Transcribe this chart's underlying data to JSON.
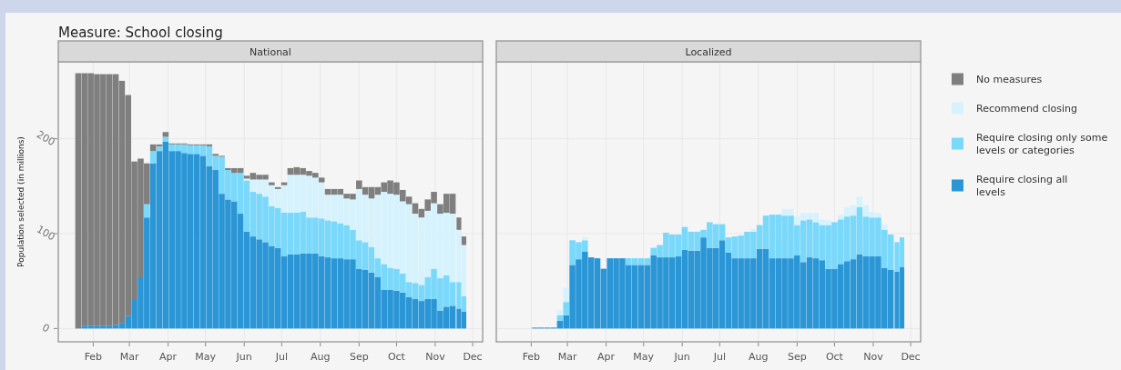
{
  "chart_data": [
    {
      "type": "bar",
      "title": "Measure: School closing",
      "subtitle": "National",
      "ylabel": "Population selected (in millions)",
      "stacked": true,
      "grid": true,
      "legend": "right",
      "tick_labels": "xy",
      "xlim": [
        "--01-04",
        "--12-09"
      ],
      "ylim": [
        -14,
        281
      ],
      "yticks": [
        0,
        100,
        200
      ],
      "xticks": [
        {
          "value": "--02-01",
          "label": "Feb"
        },
        {
          "value": "--03-01",
          "label": "Mar"
        },
        {
          "value": "--04-01",
          "label": "Apr"
        },
        {
          "value": "--05-01",
          "label": "May"
        },
        {
          "value": "--06-01",
          "label": "Jun"
        },
        {
          "value": "--07-01",
          "label": "Jul"
        },
        {
          "value": "--08-01",
          "label": "Aug"
        },
        {
          "value": "--09-01",
          "label": "Sep"
        },
        {
          "value": "--10-01",
          "label": "Oct"
        },
        {
          "value": "--11-01",
          "label": "Nov"
        },
        {
          "value": "--12-01",
          "label": "Dec"
        }
      ],
      "x": [
        "--01-20",
        "--01-25",
        "--01-30",
        "--02-04",
        "--02-09",
        "--02-14",
        "--02-19",
        "--02-24",
        "--02-29",
        "--03-05",
        "--03-10",
        "--03-15",
        "--03-20",
        "--03-25",
        "--03-30",
        "--04-04",
        "--04-09",
        "--04-14",
        "--04-19",
        "--04-24",
        "--04-29",
        "--05-04",
        "--05-09",
        "--05-14",
        "--05-19",
        "--05-24",
        "--05-29",
        "--06-03",
        "--06-08",
        "--06-13",
        "--06-18",
        "--06-23",
        "--06-28",
        "--07-03",
        "--07-08",
        "--07-13",
        "--07-18",
        "--07-23",
        "--07-28",
        "--08-02",
        "--08-07",
        "--08-12",
        "--08-17",
        "--08-22",
        "--08-27",
        "--09-01",
        "--09-06",
        "--09-11",
        "--09-16",
        "--09-21",
        "--09-26",
        "--10-01",
        "--10-06",
        "--10-11",
        "--10-16",
        "--10-21",
        "--10-26",
        "--10-31",
        "--11-05",
        "--11-10",
        "--11-15",
        "--11-20",
        "--11-24"
      ],
      "series": [
        {
          "name": "Require closing all levels",
          "color": "#2b96d6",
          "values": [
            0,
            3,
            3,
            3,
            3,
            3,
            4,
            6,
            13,
            31,
            54,
            117,
            174,
            187,
            197,
            187,
            187,
            185,
            184,
            184,
            182,
            171,
            167,
            142,
            136,
            134,
            121,
            102,
            97,
            94,
            91,
            87,
            85,
            76,
            78,
            78,
            79,
            79,
            79,
            76,
            75,
            74,
            74,
            73,
            73,
            63,
            62,
            59,
            54,
            41,
            41,
            40,
            38,
            33,
            31,
            29,
            31,
            31,
            19,
            23,
            24,
            21,
            18
          ]
        },
        {
          "name": "Require closing only some levels or categories",
          "color": "#7ad8fa",
          "values": [
            0,
            0,
            0,
            0,
            0,
            0,
            0,
            0,
            0,
            0,
            0,
            14,
            13,
            5,
            5,
            7,
            7,
            9,
            9,
            9,
            11,
            21,
            15,
            39,
            31,
            30,
            43,
            54,
            47,
            48,
            48,
            42,
            42,
            46,
            44,
            44,
            44,
            38,
            38,
            40,
            39,
            39,
            37,
            36,
            31,
            30,
            29,
            27,
            20,
            27,
            23,
            23,
            20,
            16,
            17,
            17,
            23,
            32,
            34,
            33,
            25,
            28,
            16
          ]
        },
        {
          "name": "Recommend closing",
          "color": "#d6f3fd",
          "values": [
            0,
            0,
            0,
            0,
            0,
            0,
            0,
            0,
            0,
            0,
            0,
            0,
            0,
            0,
            0,
            0,
            0,
            0,
            0,
            0,
            0,
            0,
            0,
            0,
            0,
            0,
            0,
            2,
            13,
            15,
            18,
            22,
            20,
            29,
            40,
            40,
            39,
            44,
            42,
            38,
            27,
            28,
            30,
            28,
            32,
            54,
            50,
            51,
            67,
            76,
            78,
            78,
            76,
            82,
            73,
            71,
            70,
            69,
            68,
            66,
            72,
            55,
            54
          ]
        },
        {
          "name": "No measures",
          "color": "#7f7f7f",
          "values": [
            269,
            266,
            266,
            265,
            265,
            265,
            264,
            255,
            233,
            145,
            125,
            43,
            7,
            2,
            5,
            1,
            1,
            1,
            1,
            1,
            1,
            2,
            2,
            1,
            2,
            5,
            5,
            3,
            7,
            5,
            5,
            3,
            2,
            3,
            7,
            8,
            7,
            5,
            5,
            5,
            6,
            6,
            6,
            5,
            6,
            9,
            8,
            12,
            8,
            10,
            14,
            13,
            12,
            8,
            11,
            9,
            12,
            12,
            10,
            20,
            21,
            13,
            9
          ]
        }
      ]
    },
    {
      "type": "bar",
      "subtitle": "Localized",
      "stacked": true,
      "grid": true,
      "tick_labels": "x",
      "xlim": [
        "--01-04",
        "--12-09"
      ],
      "ylim": [
        -14,
        281
      ],
      "yticks": [
        0,
        100,
        200
      ],
      "xticks": [
        {
          "value": "--02-01",
          "label": "Feb"
        },
        {
          "value": "--03-01",
          "label": "Mar"
        },
        {
          "value": "--04-01",
          "label": "Apr"
        },
        {
          "value": "--05-01",
          "label": "May"
        },
        {
          "value": "--06-01",
          "label": "Jun"
        },
        {
          "value": "--07-01",
          "label": "Jul"
        },
        {
          "value": "--08-01",
          "label": "Aug"
        },
        {
          "value": "--09-01",
          "label": "Sep"
        },
        {
          "value": "--10-01",
          "label": "Oct"
        },
        {
          "value": "--11-01",
          "label": "Nov"
        },
        {
          "value": "--12-01",
          "label": "Dec"
        }
      ],
      "x": [
        "--01-20",
        "--01-25",
        "--01-30",
        "--02-04",
        "--02-09",
        "--02-14",
        "--02-19",
        "--02-24",
        "--02-29",
        "--03-05",
        "--03-10",
        "--03-15",
        "--03-20",
        "--03-25",
        "--03-30",
        "--04-04",
        "--04-09",
        "--04-14",
        "--04-19",
        "--04-24",
        "--04-29",
        "--05-04",
        "--05-09",
        "--05-14",
        "--05-19",
        "--05-24",
        "--05-29",
        "--06-03",
        "--06-08",
        "--06-13",
        "--06-18",
        "--06-23",
        "--06-28",
        "--07-03",
        "--07-08",
        "--07-13",
        "--07-18",
        "--07-23",
        "--07-28",
        "--08-02",
        "--08-07",
        "--08-12",
        "--08-17",
        "--08-22",
        "--08-27",
        "--09-01",
        "--09-06",
        "--09-11",
        "--09-16",
        "--09-21",
        "--09-26",
        "--10-01",
        "--10-06",
        "--10-11",
        "--10-16",
        "--10-21",
        "--10-26",
        "--10-31",
        "--11-05",
        "--11-10",
        "--11-15",
        "--11-20",
        "--11-24"
      ],
      "series": [
        {
          "color": "#2b96d6",
          "values": [
            0,
            0,
            0,
            1,
            1,
            1,
            1,
            8,
            14,
            67,
            73,
            81,
            75,
            74,
            63,
            74,
            74,
            74,
            67,
            67,
            67,
            67,
            77,
            75,
            75,
            75,
            76,
            83,
            82,
            82,
            96,
            85,
            85,
            93,
            80,
            74,
            74,
            74,
            74,
            84,
            84,
            74,
            74,
            74,
            74,
            77,
            70,
            75,
            74,
            72,
            63,
            63,
            68,
            71,
            73,
            78,
            76,
            76,
            76,
            64,
            62,
            60,
            65
          ]
        },
        {
          "color": "#7ad8fa",
          "values": [
            0,
            0,
            0,
            0,
            0,
            0,
            0,
            6,
            14,
            26,
            18,
            12,
            0,
            0,
            0,
            0,
            0,
            0,
            7,
            7,
            7,
            7,
            8,
            13,
            26,
            24,
            23,
            24,
            20,
            20,
            8,
            27,
            25,
            17,
            16,
            23,
            24,
            28,
            28,
            25,
            35,
            46,
            46,
            45,
            45,
            32,
            44,
            40,
            38,
            37,
            46,
            49,
            47,
            47,
            46,
            50,
            42,
            41,
            41,
            40,
            37,
            31,
            31
          ]
        },
        {
          "color": "#d6f3fd",
          "values": [
            0,
            0,
            0,
            0,
            0,
            0,
            0,
            5,
            15,
            0,
            0,
            3,
            0,
            0,
            0,
            0,
            0,
            0,
            0,
            0,
            0,
            0,
            0,
            0,
            0,
            0,
            0,
            0,
            0,
            0,
            0,
            0,
            0,
            0,
            0,
            0,
            0,
            0,
            3,
            0,
            0,
            0,
            0,
            7,
            7,
            9,
            8,
            7,
            10,
            6,
            5,
            0,
            5,
            10,
            11,
            11,
            12,
            6,
            5,
            6,
            0,
            0,
            0
          ]
        }
      ]
    }
  ]
}
